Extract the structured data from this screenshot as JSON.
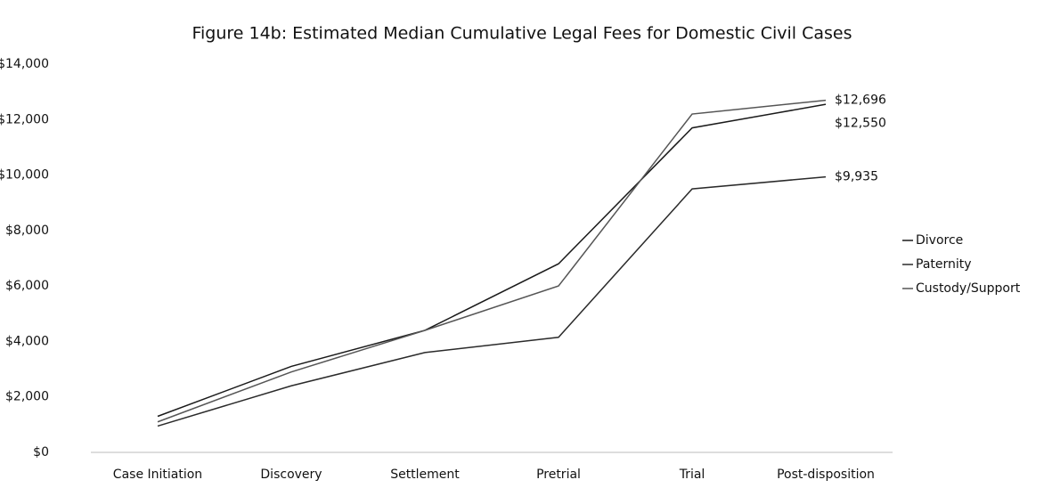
{
  "chart_data": {
    "type": "line",
    "title": "Figure 14b: Estimated Median Cumulative Legal Fees for Domestic Civil Cases",
    "categories": [
      "Case Initiation",
      "Discovery",
      "Settlement",
      "Pretrial",
      "Trial",
      "Post-disposition"
    ],
    "series": [
      {
        "name": "Divorce",
        "color": "#1a1a1a",
        "values": [
          1300,
          3100,
          4400,
          6800,
          11700,
          12550
        ],
        "value_labels": [
          null,
          null,
          null,
          null,
          null,
          "$12,550"
        ]
      },
      {
        "name": "Paternity",
        "color": "#2a2a2a",
        "values": [
          950,
          2400,
          3600,
          4150,
          9500,
          9935
        ],
        "value_labels": [
          null,
          null,
          null,
          null,
          null,
          "$9,935"
        ]
      },
      {
        "name": "Custody/Support",
        "color": "#555555",
        "values": [
          1100,
          2900,
          4400,
          6000,
          12200,
          12696
        ],
        "value_labels": [
          null,
          null,
          null,
          null,
          null,
          "$12,696"
        ]
      }
    ],
    "ylim": [
      0,
      14000
    ],
    "yticks": [
      {
        "value": 0,
        "label": "$0"
      },
      {
        "value": 2000,
        "label": "$2,000"
      },
      {
        "value": 4000,
        "label": "$4,000"
      },
      {
        "value": 6000,
        "label": "$6,000"
      },
      {
        "value": 8000,
        "label": "$8,000"
      },
      {
        "value": 10000,
        "label": "$10,000"
      },
      {
        "value": 12000,
        "label": "$12,000"
      },
      {
        "value": 14000,
        "label": "$14,000"
      }
    ],
    "grid": false,
    "legend": "right"
  }
}
